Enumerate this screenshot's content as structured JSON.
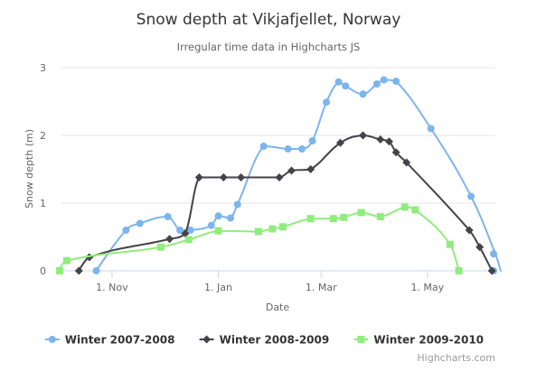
{
  "chart_data": {
    "type": "line",
    "title": "Snow depth at Vikjafjellet, Norway",
    "subtitle": "Irregular time data in Highcharts JS",
    "xlabel": "Date",
    "ylabel": "Snow depth (m)",
    "ylim": [
      0,
      3
    ],
    "yticks": [
      "0",
      "1",
      "2",
      "3"
    ],
    "xlim": [
      "1970-10-03",
      "1971-06-09"
    ],
    "xticks": [
      {
        "date": "1970-11-01",
        "label": "1. Nov"
      },
      {
        "date": "1971-01-01",
        "label": "1. Jan"
      },
      {
        "date": "1971-03-01",
        "label": "1. Mar"
      },
      {
        "date": "1971-05-01",
        "label": "1. May"
      }
    ],
    "grid": "horizontal",
    "legend_position": "bottom",
    "credits": "Highcharts.com",
    "series": [
      {
        "name": "Winter 2007-2008",
        "color": "#7cb5ec",
        "marker": "circle",
        "points": [
          [
            "1970-10-23",
            0
          ],
          [
            "1970-11-09",
            0.6
          ],
          [
            "1970-11-17",
            0.7
          ],
          [
            "1970-12-03",
            0.8
          ],
          [
            "1970-12-10",
            0.6
          ],
          [
            "1970-12-16",
            0.6
          ],
          [
            "1970-12-28",
            0.67
          ],
          [
            "1971-01-01",
            0.81
          ],
          [
            "1971-01-08",
            0.78
          ],
          [
            "1971-01-12",
            0.98
          ],
          [
            "1971-01-27",
            1.84
          ],
          [
            "1971-02-10",
            1.8
          ],
          [
            "1971-02-18",
            1.8
          ],
          [
            "1971-02-24",
            1.92
          ],
          [
            "1971-03-04",
            2.49
          ],
          [
            "1971-03-11",
            2.79
          ],
          [
            "1971-03-15",
            2.73
          ],
          [
            "1971-03-25",
            2.61
          ],
          [
            "1971-04-02",
            2.76
          ],
          [
            "1971-04-06",
            2.82
          ],
          [
            "1971-04-13",
            2.8
          ],
          [
            "1971-05-03",
            2.1
          ],
          [
            "1971-05-26",
            1.1
          ],
          [
            "1971-06-09",
            0.25
          ],
          [
            "1971-06-12",
            0
          ]
        ]
      },
      {
        "name": "Winter 2008-2009",
        "color": "#434348",
        "marker": "diamond",
        "points": [
          [
            "1970-10-13",
            0
          ],
          [
            "1970-10-19",
            0.2
          ],
          [
            "1970-12-04",
            0.47
          ],
          [
            "1970-12-13",
            0.55
          ],
          [
            "1970-12-21",
            1.38
          ],
          [
            "1971-01-04",
            1.38
          ],
          [
            "1971-01-14",
            1.38
          ],
          [
            "1971-02-05",
            1.38
          ],
          [
            "1971-02-12",
            1.48
          ],
          [
            "1971-02-23",
            1.5
          ],
          [
            "1971-03-12",
            1.89
          ],
          [
            "1971-03-25",
            2.0
          ],
          [
            "1971-04-04",
            1.94
          ],
          [
            "1971-04-09",
            1.91
          ],
          [
            "1971-04-13",
            1.75
          ],
          [
            "1971-04-19",
            1.6
          ],
          [
            "1971-05-25",
            0.6
          ],
          [
            "1971-05-31",
            0.35
          ],
          [
            "1971-06-07",
            0
          ]
        ]
      },
      {
        "name": "Winter 2009-2010",
        "color": "#90ed7d",
        "marker": "square",
        "points": [
          [
            "1970-10-01",
            0
          ],
          [
            "1970-10-06",
            0.15
          ],
          [
            "1970-11-29",
            0.35
          ],
          [
            "1970-12-15",
            0.46
          ],
          [
            "1971-01-01",
            0.59
          ],
          [
            "1971-01-24",
            0.58
          ],
          [
            "1971-02-01",
            0.62
          ],
          [
            "1971-02-07",
            0.65
          ],
          [
            "1971-02-23",
            0.77
          ],
          [
            "1971-03-08",
            0.77
          ],
          [
            "1971-03-14",
            0.79
          ],
          [
            "1971-03-24",
            0.86
          ],
          [
            "1971-04-04",
            0.8
          ],
          [
            "1971-04-18",
            0.94
          ],
          [
            "1971-04-24",
            0.9
          ],
          [
            "1971-05-14",
            0.39
          ],
          [
            "1971-05-19",
            0
          ]
        ]
      }
    ]
  }
}
